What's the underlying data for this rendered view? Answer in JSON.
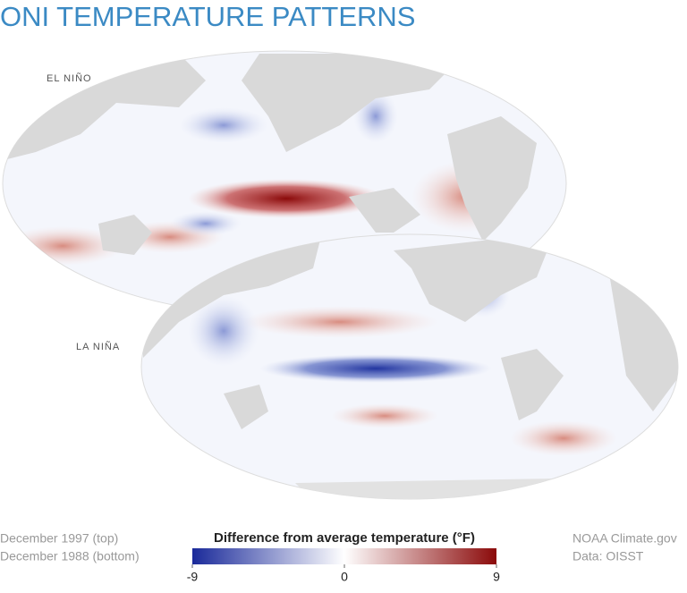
{
  "header": {
    "title": "ONI TEMPERATURE PATTERNS"
  },
  "maps": [
    {
      "label": "EL NIÑO"
    },
    {
      "label": "LA NIÑA"
    }
  ],
  "footer": {
    "dates": [
      "December 1997 (top)",
      "December 1988 (bottom)"
    ],
    "credits": [
      "NOAA Climate.gov",
      "Data: OISST"
    ]
  },
  "colorbar": {
    "title": "Difference from average temperature (°F)",
    "range": [
      -9,
      9
    ],
    "ticks": [
      -9,
      0,
      9
    ],
    "colors": [
      "#1a2a9a",
      "#ffffff",
      "#8b0a0a"
    ]
  }
}
